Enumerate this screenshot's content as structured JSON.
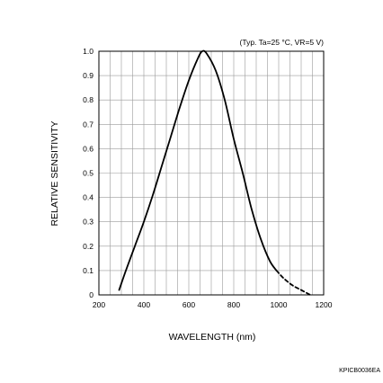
{
  "chart_data": {
    "type": "line",
    "condition_note": "(Typ. Ta=25 °C, VR=5 V)",
    "xlabel": "WAVELENGTH (nm)",
    "ylabel": "RELATIVE SENSITIVITY",
    "figure_code": "KPICB0036EA",
    "xlim": [
      200,
      1200
    ],
    "ylim": [
      0,
      1.0
    ],
    "x_ticks": [
      "200",
      "400",
      "600",
      "800",
      "1000",
      "1200"
    ],
    "y_ticks": [
      "0",
      "0.1",
      "0.2",
      "0.3",
      "0.4",
      "0.5",
      "0.6",
      "0.7",
      "0.8",
      "0.9",
      "1.0"
    ],
    "grid": true,
    "series": [
      {
        "style": "solid",
        "x": [
          290,
          320,
          360,
          400,
          440,
          480,
          520,
          560,
          600,
          640,
          660,
          680,
          720,
          760,
          800,
          840,
          880,
          920,
          960,
          990
        ],
        "y": [
          0.02,
          0.1,
          0.2,
          0.3,
          0.41,
          0.53,
          0.65,
          0.77,
          0.88,
          0.97,
          1.0,
          0.99,
          0.92,
          0.8,
          0.64,
          0.5,
          0.35,
          0.23,
          0.14,
          0.1
        ]
      },
      {
        "style": "dashed",
        "x": [
          990,
          1020,
          1060,
          1100,
          1140
        ],
        "y": [
          0.1,
          0.07,
          0.04,
          0.02,
          0.0
        ]
      }
    ]
  }
}
